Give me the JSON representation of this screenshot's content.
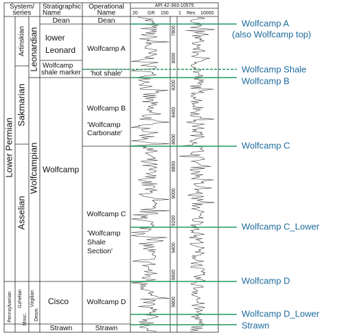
{
  "header": {
    "system_series": [
      "System/",
      "series"
    ],
    "stratigraphic": [
      "Stratigraphic",
      "Name"
    ],
    "operational": [
      "Operational",
      "Name"
    ],
    "well": "API 42-383-10575",
    "gr_min": "20",
    "gr": "GR",
    "gr_max": "150",
    "res_min": "1",
    "res": "Res",
    "res_max": "10000"
  },
  "system": {
    "lower_permian": "Lower Permian",
    "pennsylvanian": "Pennsylvanian"
  },
  "series": {
    "artinskian": "Artinskian",
    "sakmarian": "Sakmarian",
    "asselian": "Asselian",
    "gzhelian": "Gzhelian",
    "mosc": "Mosc."
  },
  "stage": {
    "leonardian": "Leonardian",
    "wolfcampian": "Wolfcampian",
    "virgilian": "Virgilian",
    "desm": "Desm."
  },
  "stratigraphic": {
    "dean": "Dean",
    "lower_leonard": [
      "lower",
      "Leonard"
    ],
    "shale_marker": [
      "Wolfcamp",
      "shale marker"
    ],
    "wolfcamp": "Wolfcamp",
    "cisco": "Cisco",
    "strawn": "Strawn"
  },
  "operational": {
    "dean": "Dean",
    "wolfcamp_a": "Wolfcamp A",
    "hot_shale": "'hot shale'",
    "wolfcamp_b": "Wolfcamp B",
    "carbonate": [
      "'Wolfcamp",
      "Carbonate'"
    ],
    "wolfcamp_c": "Wolfcamp C",
    "shale_section": [
      "'Wolfcamp",
      "Shale",
      "Section'"
    ],
    "wolfcamp_d": "Wolfcamp D",
    "strawn": "Strawn"
  },
  "depths": [
    "7800",
    "8000",
    "8200",
    "8400",
    "8600",
    "8800",
    "9000",
    "9200",
    "9400",
    "9600",
    "9800"
  ],
  "tops": [
    "Wolfcamp A",
    "(also Wolfcamp top)",
    "Wolfcamp Shale",
    "Wolfcamp B",
    "Wolfcamp C",
    "Wolfcamp C_Lower",
    "Wolfcamp D",
    "Wolfcamp D_Lower",
    "Strawn"
  ]
}
